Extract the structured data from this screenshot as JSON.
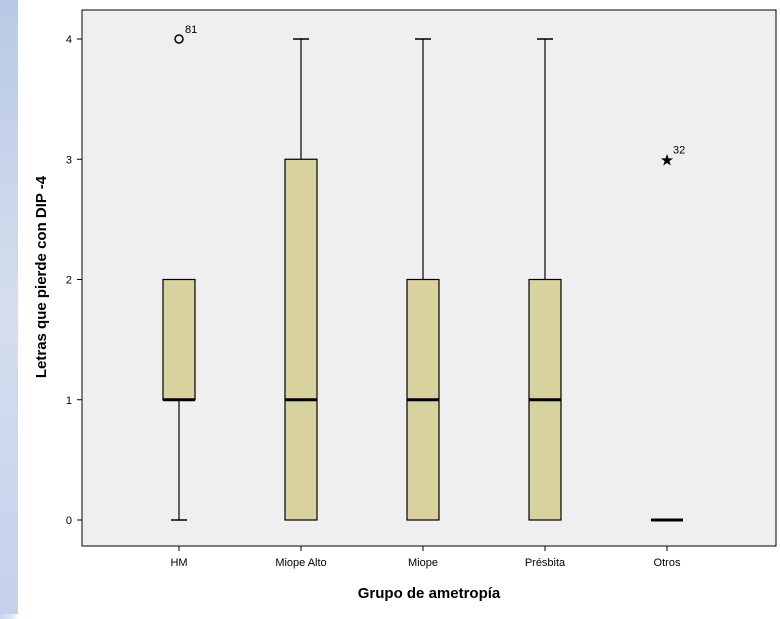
{
  "chart_data": {
    "type": "boxplot",
    "xlabel": "Grupo de ametropía",
    "ylabel": "Letras que pierde con DIP -4",
    "ylim": [
      -0.2,
      4.2
    ],
    "yticks": [
      "0",
      "1",
      "2",
      "3",
      "4"
    ],
    "categories": [
      "HM",
      "Miope Alto",
      "Miope",
      "Présbita",
      "Otros"
    ],
    "boxes": [
      {
        "category": "HM",
        "min": 0,
        "q1": 1,
        "median": 1,
        "q3": 2,
        "max": 2,
        "outliers": [
          {
            "value": 4,
            "label": "81",
            "symbol": "circle"
          }
        ]
      },
      {
        "category": "Miope Alto",
        "min": 0,
        "q1": 0,
        "median": 1,
        "q3": 3,
        "max": 4,
        "outliers": []
      },
      {
        "category": "Miope",
        "min": 0,
        "q1": 0,
        "median": 1,
        "q3": 2,
        "max": 4,
        "outliers": []
      },
      {
        "category": "Présbita",
        "min": 0,
        "q1": 0,
        "median": 1,
        "q3": 2,
        "max": 4,
        "outliers": []
      },
      {
        "category": "Otros",
        "min": 0,
        "q1": 0,
        "median": 0,
        "q3": 0,
        "max": 0,
        "outliers": [
          {
            "value": 3,
            "label": "32",
            "symbol": "star"
          }
        ]
      }
    ],
    "box_color": "#d8d39e",
    "plot_background": "#efefef",
    "grid": false
  }
}
